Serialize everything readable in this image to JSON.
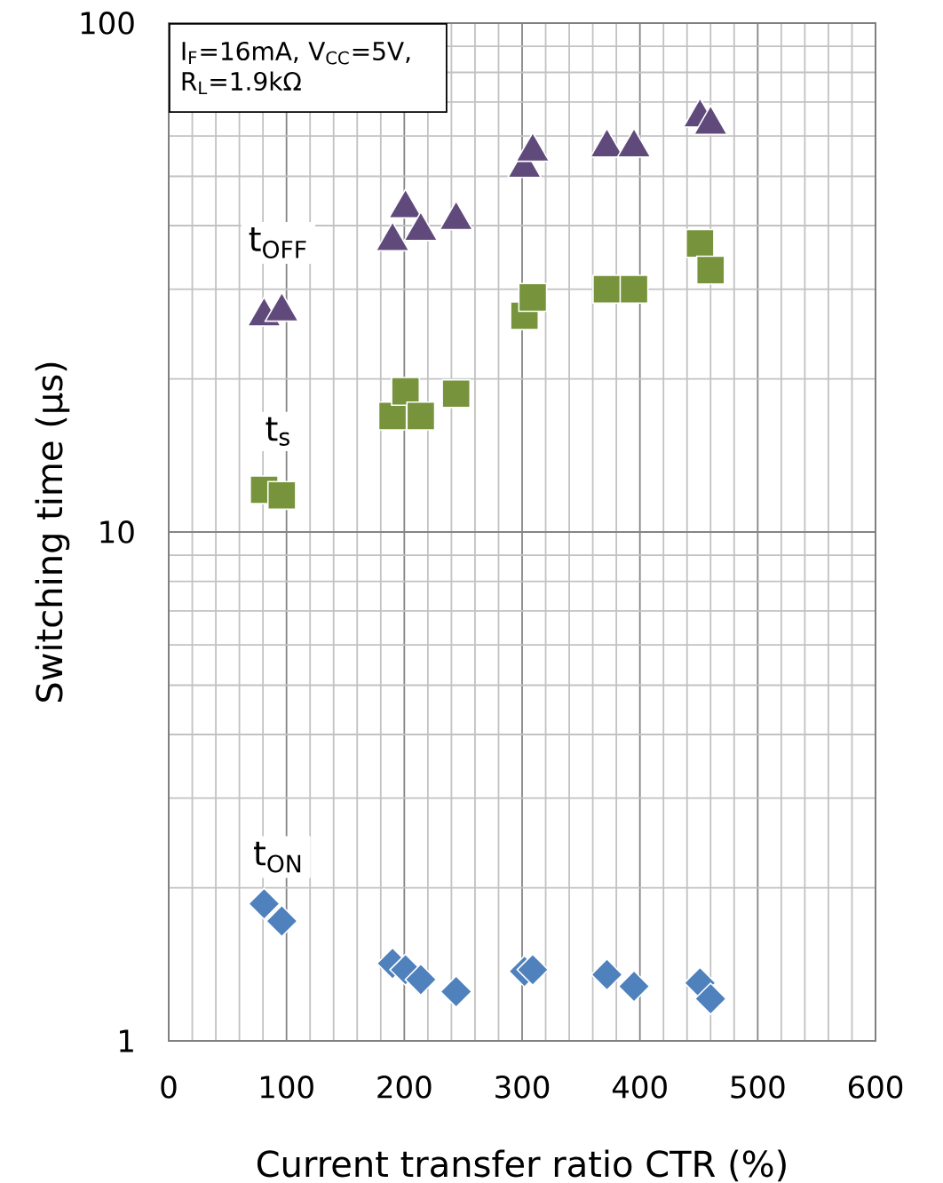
{
  "chart_data": {
    "type": "scatter",
    "xlabel": "Current transfer ratio CTR (%)",
    "ylabel": "Switching time (µs)",
    "x": [
      81,
      96,
      190,
      201,
      214,
      244,
      302,
      309,
      372,
      395,
      451,
      460
    ],
    "series": [
      {
        "name": "t$_{OFF}$",
        "color": "#604a7b",
        "marker": "triangle",
        "values": [
          27.1,
          27.7,
          38.1,
          44.2,
          39.9,
          41.9,
          53.1,
          57.1,
          58.2,
          58.2,
          66.7,
          64.5
        ]
      },
      {
        "name": "t$_{s}$",
        "color": "#77933c",
        "marker": "square",
        "values": [
          12.1,
          11.8,
          16.9,
          18.9,
          16.9,
          18.7,
          26.6,
          28.9,
          30.0,
          30.0,
          36.9,
          32.7
        ]
      },
      {
        "name": "t$_{ON}$",
        "color": "#4f81bd",
        "marker": "diamond",
        "values": [
          1.86,
          1.72,
          1.42,
          1.38,
          1.32,
          1.25,
          1.37,
          1.38,
          1.35,
          1.28,
          1.3,
          1.21
        ]
      }
    ],
    "xlim": [
      0,
      600
    ],
    "ylim": [
      1,
      100
    ],
    "xticks": [
      0,
      100,
      200,
      300,
      400,
      500,
      600
    ],
    "yticks": [
      1,
      10,
      100
    ],
    "log": "y",
    "grid": true,
    "annotations": [
      "I$_{F}$=16mA, V$_{CC}$=5V, R$_{L}$=1.9kΩ"
    ]
  }
}
